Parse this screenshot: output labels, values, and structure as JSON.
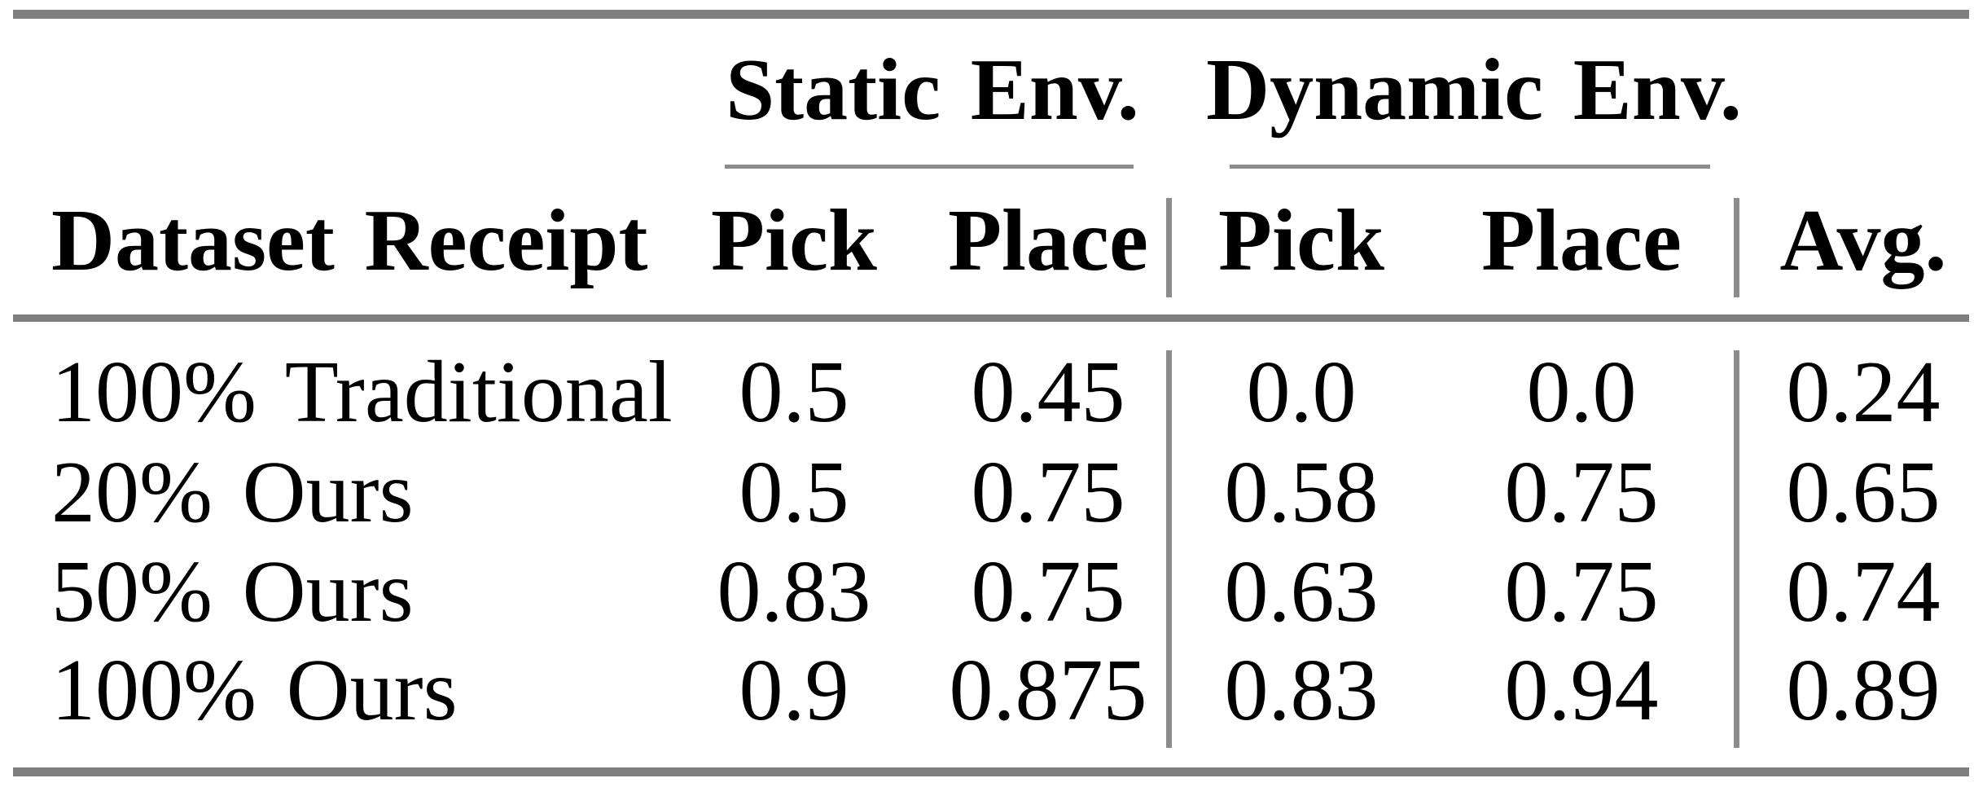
{
  "table": {
    "column_groups": [
      {
        "label": "Static Env."
      },
      {
        "label": "Dynamic Env."
      }
    ],
    "headers": {
      "row_label": "Dataset Receipt",
      "static_pick": "Pick",
      "static_place": "Place",
      "dynamic_pick": "Pick",
      "dynamic_place": "Place",
      "avg": "Avg."
    },
    "rows": [
      {
        "label": "100% Traditional",
        "values": [
          "0.5",
          "0.45",
          "0.0",
          "0.0",
          "0.24"
        ]
      },
      {
        "label": "20% Ours",
        "values": [
          "0.5",
          "0.75",
          "0.58",
          "0.75",
          "0.65"
        ]
      },
      {
        "label": "50% Ours",
        "values": [
          "0.83",
          "0.75",
          "0.63",
          "0.75",
          "0.74"
        ]
      },
      {
        "label": "100% Ours",
        "values": [
          "0.9",
          "0.875",
          "0.83",
          "0.94",
          "0.89"
        ]
      }
    ],
    "colors": {
      "heavy_rule": "#7e7e7e",
      "light_rule": "#8c8c8c",
      "text": "#000000",
      "background": "#ffffff"
    }
  },
  "chart_data": {
    "type": "table",
    "title": "",
    "column_group_labels": [
      "Static Env.",
      "Dynamic Env."
    ],
    "columns": [
      "Dataset Receipt",
      "Static Env. Pick",
      "Static Env. Place",
      "Dynamic Env. Pick",
      "Dynamic Env. Place",
      "Avg."
    ],
    "rows": [
      [
        "100% Traditional",
        0.5,
        0.45,
        0.0,
        0.0,
        0.24
      ],
      [
        "20% Ours",
        0.5,
        0.75,
        0.58,
        0.75,
        0.65
      ],
      [
        "50% Ours",
        0.83,
        0.75,
        0.63,
        0.75,
        0.74
      ],
      [
        "100% Ours",
        0.9,
        0.875,
        0.83,
        0.94,
        0.89
      ]
    ]
  }
}
